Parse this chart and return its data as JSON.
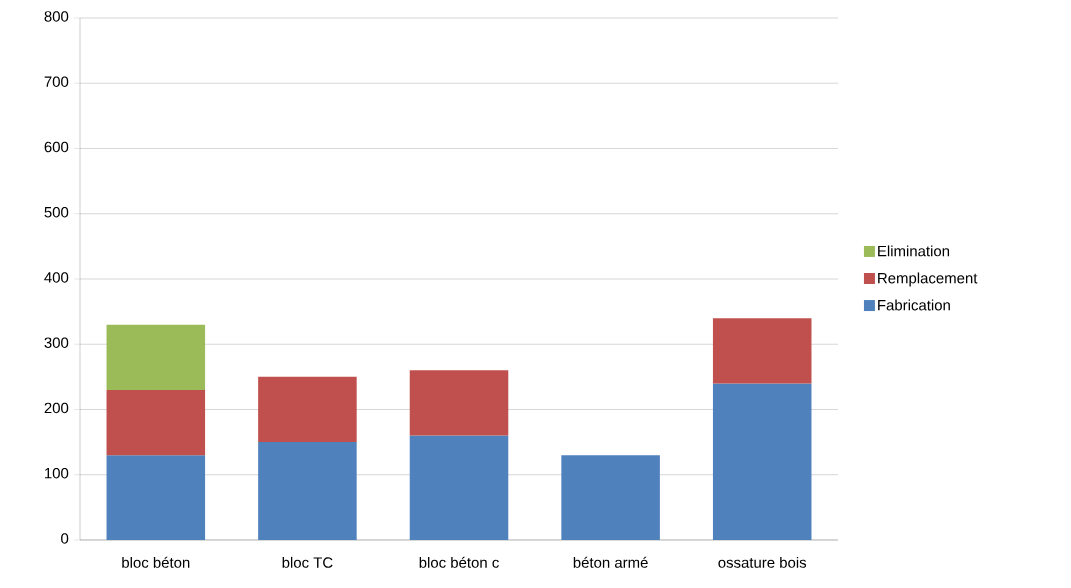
{
  "chart_data": {
    "type": "bar",
    "stacked": true,
    "categories": [
      "bloc béton",
      "bloc TC",
      "bloc béton c",
      "béton armé",
      "ossature bois"
    ],
    "series": [
      {
        "name": "Fabrication",
        "color": "#4f81bd",
        "values": [
          130,
          150,
          160,
          130,
          240
        ]
      },
      {
        "name": "Remplacement",
        "color": "#c0504d",
        "values": [
          100,
          100,
          100,
          null,
          100
        ]
      },
      {
        "name": "Elimination",
        "color": "#9bbb59",
        "values": [
          100,
          null,
          null,
          null,
          null
        ]
      }
    ],
    "ylim": [
      0,
      800
    ],
    "yticks": [
      0,
      100,
      200,
      300,
      400,
      500,
      600,
      700,
      800
    ],
    "grid": "y",
    "legend": "right"
  }
}
